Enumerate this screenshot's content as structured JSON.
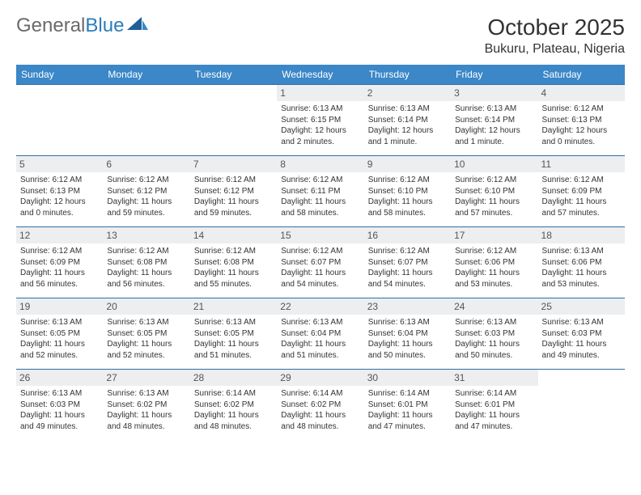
{
  "logo": {
    "text1": "General",
    "text2": "Blue"
  },
  "title": "October 2025",
  "location": "Bukuru, Plateau, Nigeria",
  "colors": {
    "header_bg": "#3b87c8",
    "row_border": "#2f6fa8",
    "daynum_bg": "#eceef0",
    "text": "#333333",
    "logo_gray": "#6a6a6a",
    "logo_blue": "#2a7db8"
  },
  "weekdays": [
    "Sunday",
    "Monday",
    "Tuesday",
    "Wednesday",
    "Thursday",
    "Friday",
    "Saturday"
  ],
  "weeks": [
    [
      null,
      null,
      null,
      {
        "n": "1",
        "sr": "Sunrise: 6:13 AM",
        "ss": "Sunset: 6:15 PM",
        "dl": "Daylight: 12 hours and 2 minutes."
      },
      {
        "n": "2",
        "sr": "Sunrise: 6:13 AM",
        "ss": "Sunset: 6:14 PM",
        "dl": "Daylight: 12 hours and 1 minute."
      },
      {
        "n": "3",
        "sr": "Sunrise: 6:13 AM",
        "ss": "Sunset: 6:14 PM",
        "dl": "Daylight: 12 hours and 1 minute."
      },
      {
        "n": "4",
        "sr": "Sunrise: 6:12 AM",
        "ss": "Sunset: 6:13 PM",
        "dl": "Daylight: 12 hours and 0 minutes."
      }
    ],
    [
      {
        "n": "5",
        "sr": "Sunrise: 6:12 AM",
        "ss": "Sunset: 6:13 PM",
        "dl": "Daylight: 12 hours and 0 minutes."
      },
      {
        "n": "6",
        "sr": "Sunrise: 6:12 AM",
        "ss": "Sunset: 6:12 PM",
        "dl": "Daylight: 11 hours and 59 minutes."
      },
      {
        "n": "7",
        "sr": "Sunrise: 6:12 AM",
        "ss": "Sunset: 6:12 PM",
        "dl": "Daylight: 11 hours and 59 minutes."
      },
      {
        "n": "8",
        "sr": "Sunrise: 6:12 AM",
        "ss": "Sunset: 6:11 PM",
        "dl": "Daylight: 11 hours and 58 minutes."
      },
      {
        "n": "9",
        "sr": "Sunrise: 6:12 AM",
        "ss": "Sunset: 6:10 PM",
        "dl": "Daylight: 11 hours and 58 minutes."
      },
      {
        "n": "10",
        "sr": "Sunrise: 6:12 AM",
        "ss": "Sunset: 6:10 PM",
        "dl": "Daylight: 11 hours and 57 minutes."
      },
      {
        "n": "11",
        "sr": "Sunrise: 6:12 AM",
        "ss": "Sunset: 6:09 PM",
        "dl": "Daylight: 11 hours and 57 minutes."
      }
    ],
    [
      {
        "n": "12",
        "sr": "Sunrise: 6:12 AM",
        "ss": "Sunset: 6:09 PM",
        "dl": "Daylight: 11 hours and 56 minutes."
      },
      {
        "n": "13",
        "sr": "Sunrise: 6:12 AM",
        "ss": "Sunset: 6:08 PM",
        "dl": "Daylight: 11 hours and 56 minutes."
      },
      {
        "n": "14",
        "sr": "Sunrise: 6:12 AM",
        "ss": "Sunset: 6:08 PM",
        "dl": "Daylight: 11 hours and 55 minutes."
      },
      {
        "n": "15",
        "sr": "Sunrise: 6:12 AM",
        "ss": "Sunset: 6:07 PM",
        "dl": "Daylight: 11 hours and 54 minutes."
      },
      {
        "n": "16",
        "sr": "Sunrise: 6:12 AM",
        "ss": "Sunset: 6:07 PM",
        "dl": "Daylight: 11 hours and 54 minutes."
      },
      {
        "n": "17",
        "sr": "Sunrise: 6:12 AM",
        "ss": "Sunset: 6:06 PM",
        "dl": "Daylight: 11 hours and 53 minutes."
      },
      {
        "n": "18",
        "sr": "Sunrise: 6:13 AM",
        "ss": "Sunset: 6:06 PM",
        "dl": "Daylight: 11 hours and 53 minutes."
      }
    ],
    [
      {
        "n": "19",
        "sr": "Sunrise: 6:13 AM",
        "ss": "Sunset: 6:05 PM",
        "dl": "Daylight: 11 hours and 52 minutes."
      },
      {
        "n": "20",
        "sr": "Sunrise: 6:13 AM",
        "ss": "Sunset: 6:05 PM",
        "dl": "Daylight: 11 hours and 52 minutes."
      },
      {
        "n": "21",
        "sr": "Sunrise: 6:13 AM",
        "ss": "Sunset: 6:05 PM",
        "dl": "Daylight: 11 hours and 51 minutes."
      },
      {
        "n": "22",
        "sr": "Sunrise: 6:13 AM",
        "ss": "Sunset: 6:04 PM",
        "dl": "Daylight: 11 hours and 51 minutes."
      },
      {
        "n": "23",
        "sr": "Sunrise: 6:13 AM",
        "ss": "Sunset: 6:04 PM",
        "dl": "Daylight: 11 hours and 50 minutes."
      },
      {
        "n": "24",
        "sr": "Sunrise: 6:13 AM",
        "ss": "Sunset: 6:03 PM",
        "dl": "Daylight: 11 hours and 50 minutes."
      },
      {
        "n": "25",
        "sr": "Sunrise: 6:13 AM",
        "ss": "Sunset: 6:03 PM",
        "dl": "Daylight: 11 hours and 49 minutes."
      }
    ],
    [
      {
        "n": "26",
        "sr": "Sunrise: 6:13 AM",
        "ss": "Sunset: 6:03 PM",
        "dl": "Daylight: 11 hours and 49 minutes."
      },
      {
        "n": "27",
        "sr": "Sunrise: 6:13 AM",
        "ss": "Sunset: 6:02 PM",
        "dl": "Daylight: 11 hours and 48 minutes."
      },
      {
        "n": "28",
        "sr": "Sunrise: 6:14 AM",
        "ss": "Sunset: 6:02 PM",
        "dl": "Daylight: 11 hours and 48 minutes."
      },
      {
        "n": "29",
        "sr": "Sunrise: 6:14 AM",
        "ss": "Sunset: 6:02 PM",
        "dl": "Daylight: 11 hours and 48 minutes."
      },
      {
        "n": "30",
        "sr": "Sunrise: 6:14 AM",
        "ss": "Sunset: 6:01 PM",
        "dl": "Daylight: 11 hours and 47 minutes."
      },
      {
        "n": "31",
        "sr": "Sunrise: 6:14 AM",
        "ss": "Sunset: 6:01 PM",
        "dl": "Daylight: 11 hours and 47 minutes."
      },
      null
    ]
  ]
}
